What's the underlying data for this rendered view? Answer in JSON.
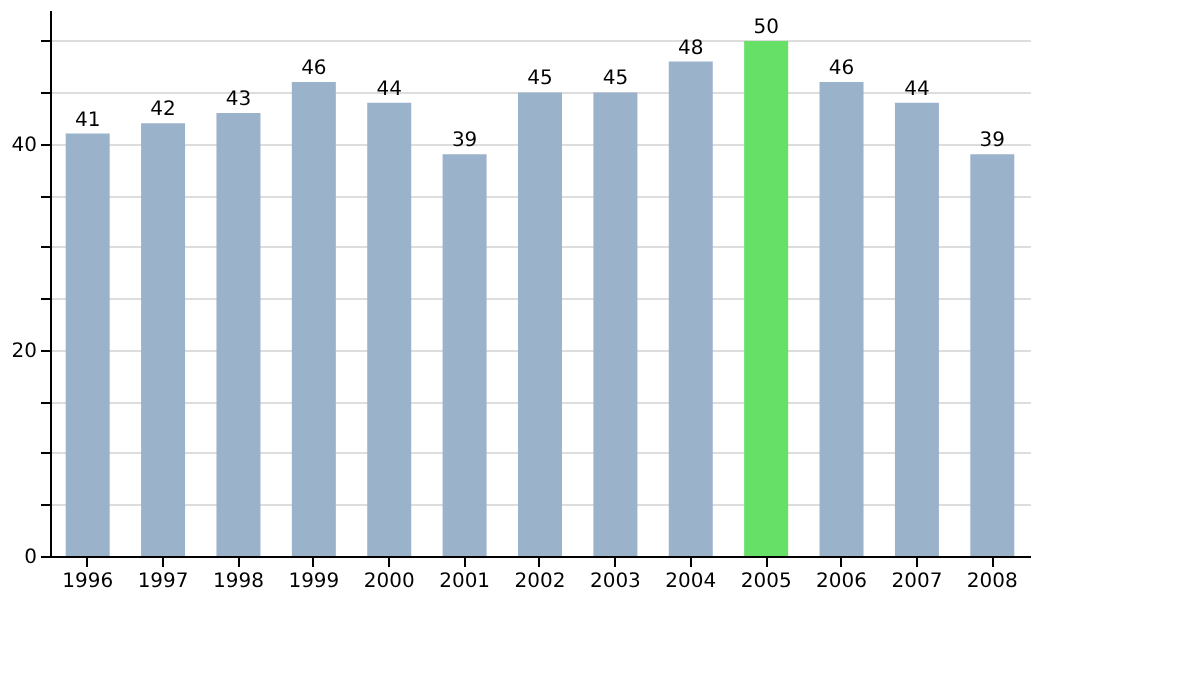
{
  "chart_data": {
    "type": "bar",
    "categories": [
      "1996",
      "1997",
      "1998",
      "1999",
      "2000",
      "2001",
      "2002",
      "2003",
      "2004",
      "2005",
      "2006",
      "2007",
      "2008"
    ],
    "values": [
      41,
      42,
      43,
      46,
      44,
      39,
      45,
      45,
      48,
      50,
      46,
      44,
      39
    ],
    "colors": [
      "#9bb2cb",
      "#9bb2cb",
      "#9bb2cb",
      "#9bb2cb",
      "#9bb2cb",
      "#9bb2cb",
      "#9bb2cb",
      "#9bb2cb",
      "#9bb2cb",
      "#66e066",
      "#9bb2cb",
      "#9bb2cb",
      "#9bb2cb"
    ],
    "ylim": [
      0,
      53
    ],
    "yticks": [
      0,
      {
        "value": 5,
        "label": null
      },
      {
        "value": 10,
        "label": null
      },
      {
        "value": 15,
        "label": null
      },
      20,
      {
        "value": 25,
        "label": null
      },
      {
        "value": 30,
        "label": null
      },
      {
        "value": 35,
        "label": null
      },
      40,
      {
        "value": 45,
        "label": null
      },
      {
        "value": 50,
        "label": null
      }
    ],
    "grid": "y",
    "data_labels": true
  }
}
